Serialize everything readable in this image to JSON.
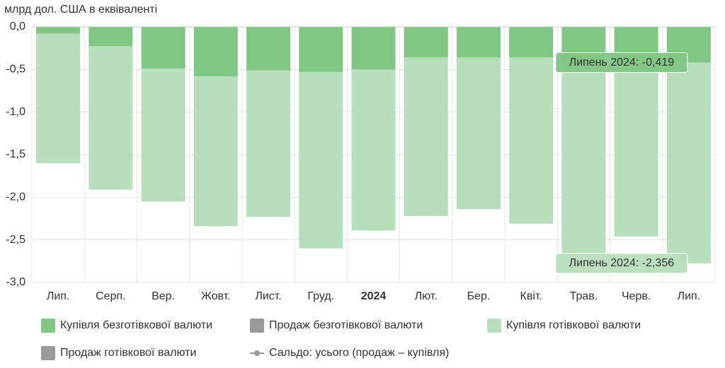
{
  "chart_data": {
    "type": "stacked-bar",
    "y_axis_title": "млрд дол. США в еквіваленті",
    "categories": [
      "Лип.",
      "Серп.",
      "Вер.",
      "Жовт.",
      "Лист.",
      "Груд.",
      "2024",
      "Лют.",
      "Бер.",
      "Квіт.",
      "Трав.",
      "Черв.",
      "Лип."
    ],
    "series": [
      {
        "name": "Купівля безготівкової валюти",
        "color": "#81c784",
        "visible": true,
        "values": [
          -0.08,
          -0.23,
          -0.49,
          -0.58,
          -0.51,
          -0.53,
          -0.5,
          -0.36,
          -0.36,
          -0.36,
          -0.4,
          -0.4,
          -0.419
        ]
      },
      {
        "name": "Продаж безготівкової валюти",
        "color": "#999999",
        "visible": false
      },
      {
        "name": "Купівля готівкової валюти",
        "color": "#b7dfbb",
        "visible": true,
        "values": [
          -1.52,
          -1.68,
          -1.56,
          -1.76,
          -1.72,
          -2.07,
          -1.89,
          -1.86,
          -1.78,
          -1.95,
          -2.27,
          -2.06,
          -2.356
        ]
      },
      {
        "name": "Продаж готівкової валюти",
        "color": "#999999",
        "visible": false
      },
      {
        "name": "Сальдо: усього (продаж – купівля)",
        "color": "#999999",
        "visible": false,
        "marker": "line"
      }
    ],
    "annotations": [
      "Липень 2024: -0,419",
      "Липень 2024: -2,356"
    ],
    "ylim": [
      -3.0,
      0.0
    ],
    "yticks": [
      {
        "value": 0,
        "label": "0,0"
      },
      {
        "value": -0.5,
        "label": "-0,5"
      },
      {
        "value": -1.0,
        "label": "-1,0"
      },
      {
        "value": -1.5,
        "label": "-1,5"
      },
      {
        "value": -2.0,
        "label": "-2,0"
      },
      {
        "value": -2.5,
        "label": "-2,5"
      },
      {
        "value": -3.0,
        "label": "-3,0"
      }
    ],
    "grid": true
  }
}
